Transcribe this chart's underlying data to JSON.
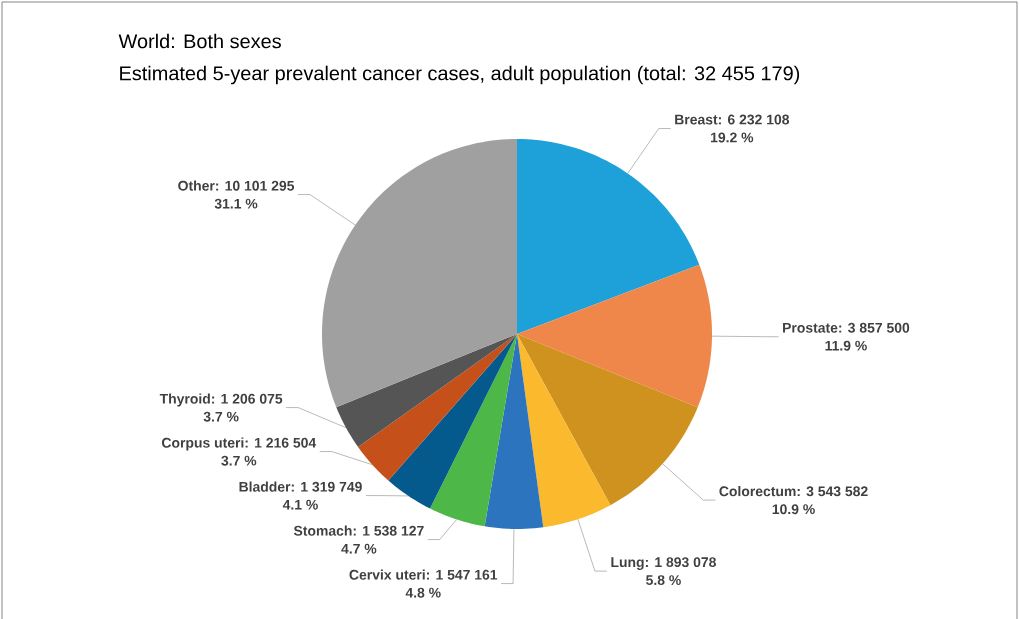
{
  "chart_data": {
    "type": "pie",
    "title": "World: Both sexes",
    "subtitle": "Estimated 5-year prevalent cancer cases, adult population (total: 32 455 179)",
    "categories": [
      "Breast: 6 232 108",
      "Prostate: 3 857 500",
      "Colorectum: 3 543 582",
      "Lung: 1 893 078",
      "Cervix uteri: 1 547 161",
      "Stomach: 1 538 127",
      "Bladder: 1 319 749",
      "Corpus uteri: 1 216 504",
      "Thyroid: 1 206 075",
      "Other: 10 101 295"
    ],
    "values": [
      19.2,
      11.9,
      10.9,
      5.8,
      4.8,
      4.7,
      4.1,
      3.7,
      3.7,
      31.1
    ],
    "value_labels": [
      "19.2 %",
      "11.9 %",
      "10.9 %",
      "5.8 %",
      "4.8 %",
      "4.7 %",
      "4.1 %",
      "3.7 %",
      "3.7 %",
      "31.1 %"
    ],
    "colors": [
      "#1ea1d9",
      "#f0874a",
      "#d0921e",
      "#fbb92d",
      "#2d74bf",
      "#4db848",
      "#045a8d",
      "#c5501a",
      "#555555",
      "#a0a0a0"
    ]
  }
}
